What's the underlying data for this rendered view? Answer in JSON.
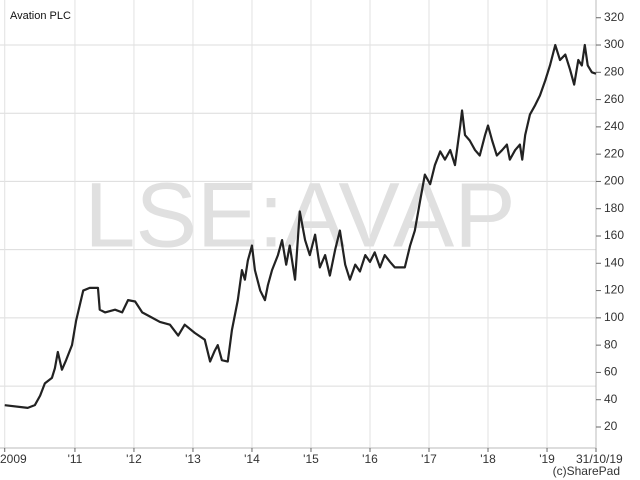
{
  "chart_data": {
    "type": "line",
    "title": "Avation PLC",
    "watermark": "LSE:AVAP",
    "credit": "(c)SharePad",
    "color": "#222222",
    "x": [
      2009.81,
      2010.2,
      2010.32,
      2010.41,
      2010.49,
      2010.61,
      2010.66,
      2010.71,
      2010.78,
      2010.85,
      2010.95,
      2011.02,
      2011.08,
      2011.14,
      2011.25,
      2011.39,
      2011.42,
      2011.51,
      2011.68,
      2011.8,
      2011.9,
      2012.02,
      2012.14,
      2012.27,
      2012.44,
      2012.61,
      2012.75,
      2012.86,
      2013.03,
      2013.2,
      2013.29,
      2013.37,
      2013.42,
      2013.49,
      2013.59,
      2013.66,
      2013.76,
      2013.83,
      2013.88,
      2013.93,
      2014.0,
      2014.05,
      2014.14,
      2014.22,
      2014.27,
      2014.34,
      2014.44,
      2014.51,
      2014.58,
      2014.64,
      2014.73,
      2014.81,
      2014.9,
      2014.98,
      2015.07,
      2015.15,
      2015.24,
      2015.32,
      2015.41,
      2015.49,
      2015.58,
      2015.66,
      2015.75,
      2015.83,
      2015.92,
      2016.0,
      2016.08,
      2016.17,
      2016.25,
      2016.34,
      2016.42,
      2016.59,
      2016.68,
      2016.76,
      2016.85,
      2016.93,
      2017.02,
      2017.1,
      2017.19,
      2017.27,
      2017.36,
      2017.44,
      2017.53,
      2017.56,
      2017.61,
      2017.69,
      2017.78,
      2017.86,
      2017.95,
      2018.0,
      2018.07,
      2018.15,
      2018.24,
      2018.32,
      2018.37,
      2018.46,
      2018.54,
      2018.58,
      2018.63,
      2018.71,
      2018.8,
      2018.88,
      2018.97,
      2019.05,
      2019.14,
      2019.22,
      2019.31,
      2019.39,
      2019.46,
      2019.53,
      2019.59,
      2019.64,
      2019.69,
      2019.76,
      2019.83
    ],
    "values": [
      36,
      34,
      36,
      43,
      52,
      56,
      63,
      75,
      62,
      69,
      80,
      98,
      109,
      120,
      122,
      122,
      106,
      104,
      106,
      104,
      113,
      112,
      104,
      101,
      97,
      95,
      87,
      95,
      89,
      84,
      68,
      76,
      80,
      69,
      68,
      91,
      113,
      135,
      128,
      142,
      153,
      135,
      120,
      113,
      124,
      135,
      146,
      157,
      139,
      153,
      128,
      178,
      157,
      146,
      161,
      137,
      146,
      131,
      150,
      164,
      139,
      128,
      139,
      134,
      146,
      141,
      148,
      137,
      146,
      141,
      137,
      137,
      153,
      164,
      186,
      205,
      198,
      212,
      222,
      216,
      223,
      212,
      241,
      252,
      234,
      230,
      223,
      219,
      234,
      241,
      230,
      219,
      223,
      227,
      216,
      223,
      227,
      216,
      234,
      249,
      256,
      263,
      274,
      285,
      300,
      289,
      293,
      282,
      271,
      289,
      285,
      300,
      285,
      280,
      279
    ],
    "xlim": [
      2009.73,
      2019.83
    ],
    "xticks": [
      {
        "value": 2009.81,
        "label": "2009"
      },
      {
        "value": 2011,
        "label": "'11"
      },
      {
        "value": 2012,
        "label": "'12"
      },
      {
        "value": 2013,
        "label": "'13"
      },
      {
        "value": 2014,
        "label": "'14"
      },
      {
        "value": 2015,
        "label": "'15"
      },
      {
        "value": 2016,
        "label": "'16"
      },
      {
        "value": 2017,
        "label": "'17"
      },
      {
        "value": 2018,
        "label": "'18"
      },
      {
        "value": 2019,
        "label": "'19"
      },
      {
        "value": 2019.83,
        "label": "31/10/19"
      }
    ],
    "ylim": [
      4.6,
      333
    ],
    "yticks": [
      20,
      40,
      60,
      80,
      100,
      120,
      140,
      160,
      180,
      200,
      220,
      240,
      260,
      280,
      300,
      320
    ],
    "ygrid": [
      50,
      100,
      150,
      200,
      250,
      300
    ],
    "grid": true
  }
}
